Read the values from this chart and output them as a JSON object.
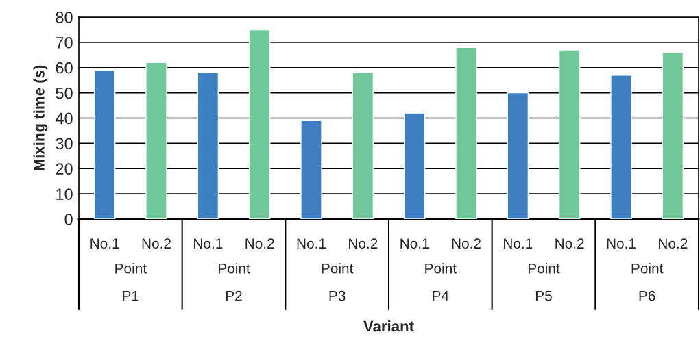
{
  "chart_data": {
    "type": "bar",
    "xlabel": "Variant",
    "ylabel": "Mixing time (s)",
    "categories": [
      "No.1",
      "No.2",
      "No.1",
      "No.2",
      "No.1",
      "No.2",
      "No.1",
      "No.2",
      "No.1",
      "No.2",
      "No.1",
      "No.2"
    ],
    "values": [
      59,
      62,
      58,
      75,
      39,
      58,
      42,
      68,
      50,
      67,
      57,
      66
    ],
    "colors": [
      "#3d7fc1",
      "#6fc79a",
      "#3d7fc1",
      "#6fc79a",
      "#3d7fc1",
      "#6fc79a",
      "#3d7fc1",
      "#6fc79a",
      "#3d7fc1",
      "#6fc79a",
      "#3d7fc1",
      "#6fc79a"
    ],
    "annotations": [
      "Point",
      "P1",
      "Point",
      "P2",
      "Point",
      "P3",
      "Point",
      "P4",
      "Point",
      "P5",
      "Point",
      "P6"
    ],
    "ylim": [
      0,
      80
    ],
    "yticks": [
      0,
      10,
      20,
      30,
      40,
      50,
      60,
      70,
      80
    ],
    "grid": "y",
    "legend": false
  }
}
